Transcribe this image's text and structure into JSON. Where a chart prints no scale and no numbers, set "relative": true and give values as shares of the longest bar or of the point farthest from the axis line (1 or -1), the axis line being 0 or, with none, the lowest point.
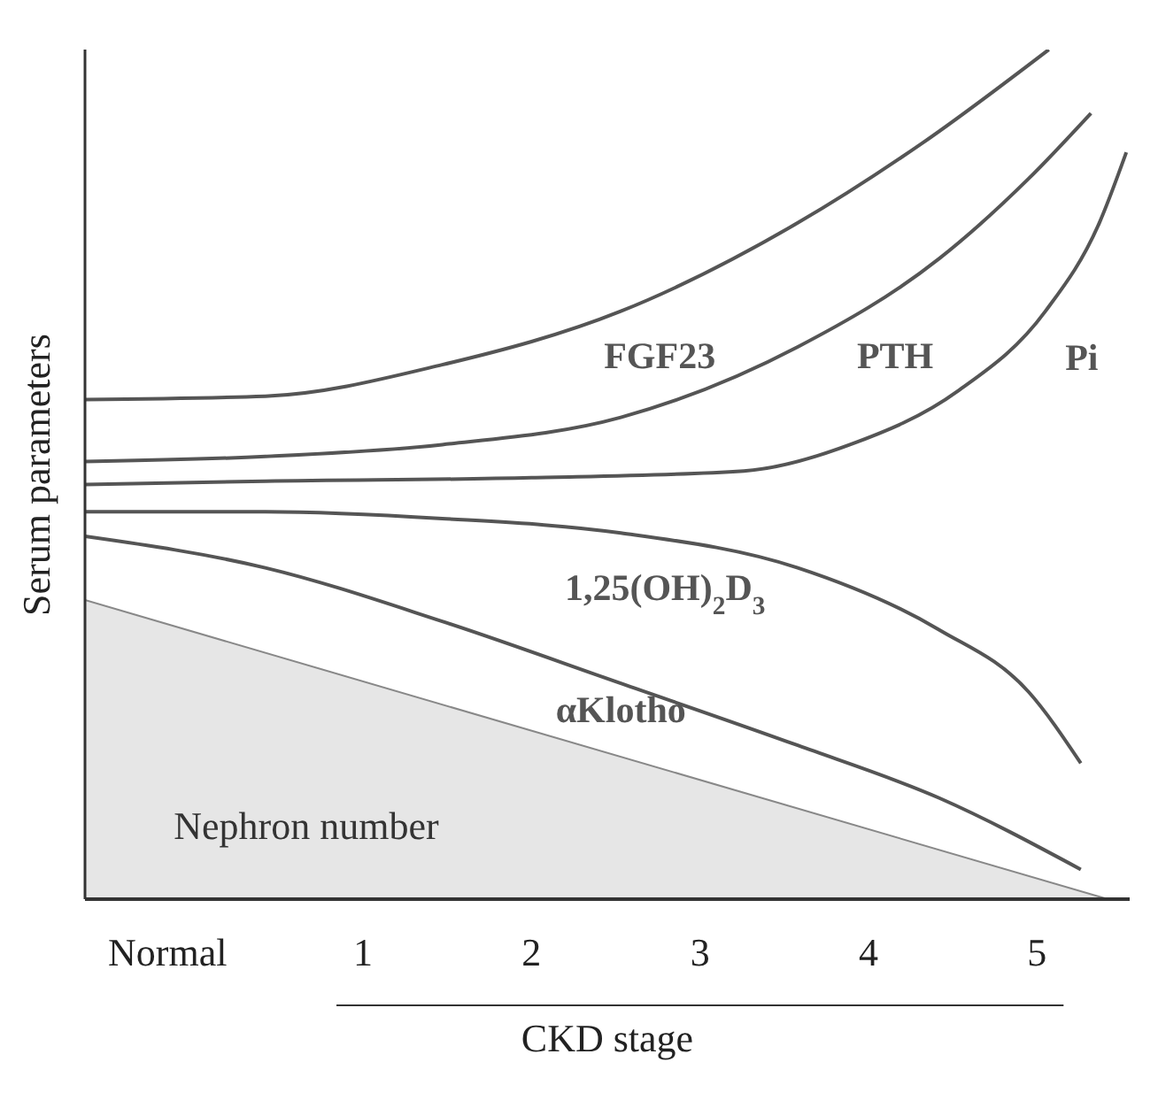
{
  "chart_data": {
    "type": "line",
    "relative": true,
    "xlabel": "CKD stage",
    "ylabel": "Serum parameters",
    "xlim": [
      -0.65,
      5.55
    ],
    "xticks": [
      {
        "value": -0.16,
        "label": "Normal"
      },
      1,
      2,
      3,
      4,
      5
    ],
    "marker": "none",
    "line_style": "solid",
    "series": [
      {
        "name": "Nephron number",
        "type": "area",
        "color": "#e6e6e6",
        "x": [
          -0.65,
          5.42
        ],
        "values": [
          0.352,
          0
        ]
      },
      {
        "name": "FGF23",
        "color": "#555555",
        "x": [
          -0.65,
          0.42,
          1.47,
          2.53,
          3.58,
          4.32,
          5.07
        ],
        "values": [
          0.588,
          0.592,
          0.629,
          0.692,
          0.796,
          0.89,
          1.0
        ]
      },
      {
        "name": "PTH",
        "color": "#555555",
        "x": [
          -0.65,
          0.42,
          1.47,
          2.53,
          3.58,
          4.42,
          4.95,
          5.32
        ],
        "values": [
          0.515,
          0.521,
          0.535,
          0.567,
          0.65,
          0.754,
          0.848,
          0.925
        ]
      },
      {
        "name": "Pi",
        "color": "#555555",
        "x": [
          -0.65,
          0.42,
          2.0,
          3.26,
          3.89,
          4.53,
          5.05,
          5.37,
          5.53
        ],
        "values": [
          0.488,
          0.492,
          0.496,
          0.504,
          0.535,
          0.598,
          0.692,
          0.796,
          0.879
        ]
      },
      {
        "name": "1,25(OH)$_{2}$D$_{3}$",
        "color": "#555555",
        "x": [
          -0.65,
          0.42,
          1.47,
          2.53,
          3.58,
          4.42,
          4.95,
          5.26
        ],
        "values": [
          0.456,
          0.456,
          0.448,
          0.431,
          0.39,
          0.317,
          0.244,
          0.16
        ]
      },
      {
        "name": "αKlotho",
        "color": "#555555",
        "x": [
          -0.65,
          0.42,
          1.47,
          2.53,
          3.58,
          4.42,
          5.26
        ],
        "values": [
          0.427,
          0.39,
          0.327,
          0.254,
          0.181,
          0.119,
          0.035
        ]
      }
    ]
  }
}
